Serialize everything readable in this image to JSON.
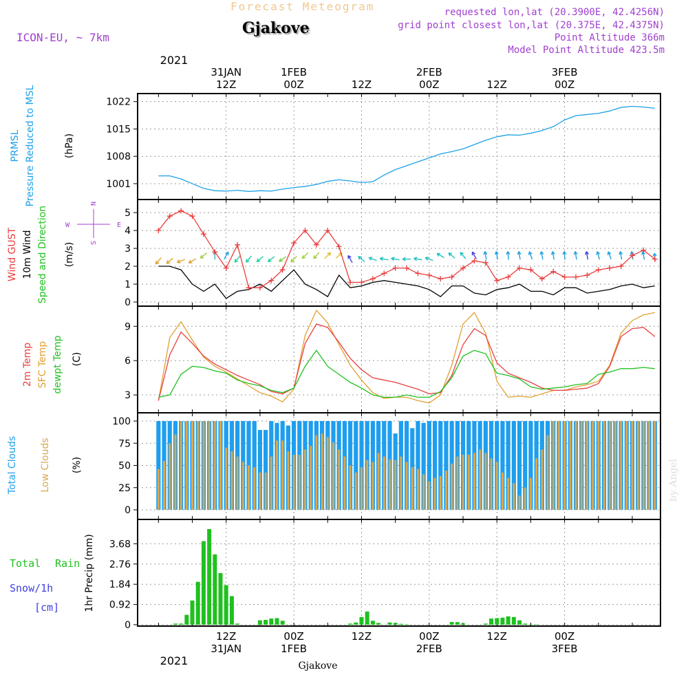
{
  "header": {
    "product": "Forecast Meteogram",
    "model": "ICON-EU, ~ 7km",
    "location": "Gjakove",
    "requested": "requested lon,lat (20.3900E, 42.4256N)",
    "grid_point": "grid point closest lon,lat (20.375E, 42.4375N)",
    "point_altitude": "Point Altitude 366m",
    "model_altitude": "Model Point Altitude 423.5m"
  },
  "watermark": "by Angel",
  "footer_location": "Gjakove",
  "time_axis": {
    "year": "2021",
    "top_ticks": [
      {
        "hour": 12,
        "date": "31JAN",
        "time": "12Z"
      },
      {
        "hour": 24,
        "date": "1FEB",
        "time": "00Z"
      },
      {
        "hour": 36,
        "date": "",
        "time": "12Z"
      },
      {
        "hour": 48,
        "date": "2FEB",
        "time": "00Z"
      },
      {
        "hour": 60,
        "date": "",
        "time": "12Z"
      },
      {
        "hour": 72,
        "date": "3FEB",
        "time": "00Z"
      }
    ],
    "bottom_ticks": [
      {
        "hour": 12,
        "time": "12Z",
        "date": "31JAN"
      },
      {
        "hour": 24,
        "time": "00Z",
        "date": "1FEB"
      },
      {
        "hour": 36,
        "time": "12Z",
        "date": ""
      },
      {
        "hour": 48,
        "time": "00Z",
        "date": "2FEB"
      },
      {
        "hour": 60,
        "time": "12Z",
        "date": ""
      },
      {
        "hour": 72,
        "time": "00Z",
        "date": "3FEB"
      }
    ]
  },
  "panel_labels": {
    "pressure": {
      "name": "PRMSL",
      "desc": "Pressure Reduced to MSL",
      "unit": "(hPa)"
    },
    "wind": {
      "gust": "Wind GUST",
      "wind10": "10m Wind",
      "dir": "Speed and Direction",
      "unit": "(m/s)",
      "compass_n": "N",
      "compass_s": "S",
      "compass_w": "W",
      "compass_e": "E"
    },
    "temp": {
      "t2m": "2m Temp",
      "sfc": "SFC Temp",
      "dewpt": "dewpt Temp",
      "unit": "(C)"
    },
    "clouds": {
      "total": "Total Clouds",
      "low": "Low Clouds",
      "unit": "(%)"
    },
    "precip": {
      "total": "Total",
      "rain": "Rain",
      "snow": "Snow/1h",
      "snow_unit": "[cm]",
      "axis": "1hr Precip (mm)"
    }
  },
  "colors": {
    "pressure": "#1ea0e8",
    "gust": "#e83c3c",
    "wind10": "#000000",
    "t2m": "#e84040",
    "sfc": "#e0a030",
    "dewpt": "#20c020",
    "total_clouds": "#1e9eee",
    "low_clouds": "#d8a850",
    "rain": "#20c020",
    "snow": "#4040e0",
    "header_purple": "#a040d0",
    "header_orange": "#f0c890"
  },
  "chart_data": [
    {
      "type": "line",
      "title": "PRMSL Pressure Reduced to MSL",
      "ylabel": "(hPa)",
      "ylim": [
        998,
        1023
      ],
      "yticks": [
        "1001",
        "1008",
        "1015",
        "1022"
      ],
      "x_hours": [
        0,
        2,
        4,
        6,
        8,
        10,
        12,
        14,
        16,
        18,
        20,
        22,
        24,
        26,
        28,
        30,
        32,
        34,
        36,
        38,
        40,
        42,
        44,
        46,
        48,
        50,
        52,
        54,
        56,
        58,
        60,
        62,
        64,
        66,
        68,
        70,
        72,
        74,
        76,
        78,
        80,
        82,
        84,
        86,
        88
      ],
      "series": [
        {
          "name": "PRMSL",
          "values": [
            1003,
            1003,
            1002.2,
            1001,
            999.8,
            999.2,
            999.1,
            999.3,
            999.0,
            999.2,
            999.1,
            999.6,
            1000.0,
            1000.3,
            1000.8,
            1001.6,
            1002.0,
            1001.7,
            1001.3,
            1001.5,
            1003.2,
            1004.6,
            1005.6,
            1006.6,
            1007.6,
            1008.6,
            1009.2,
            1009.9,
            1011.0,
            1012.1,
            1013.0,
            1013.5,
            1013.4,
            1013.9,
            1014.6,
            1015.6,
            1017.3,
            1018.4,
            1018.7,
            1019.0,
            1019.6,
            1020.5,
            1020.8,
            1020.6,
            1020.3
          ]
        }
      ]
    },
    {
      "type": "line",
      "title": "Wind GUST / 10m Wind",
      "ylabel": "(m/s)",
      "ylim": [
        0,
        5.5
      ],
      "yticks": [
        "0",
        "1",
        "2",
        "3",
        "4",
        "5"
      ],
      "x_hours": [
        0,
        2,
        4,
        6,
        8,
        10,
        12,
        14,
        16,
        18,
        20,
        22,
        24,
        26,
        28,
        30,
        32,
        34,
        36,
        38,
        40,
        42,
        44,
        46,
        48,
        50,
        52,
        54,
        56,
        58,
        60,
        62,
        64,
        66,
        68,
        70,
        72,
        74,
        76,
        78,
        80,
        82,
        84,
        86,
        88
      ],
      "series": [
        {
          "name": "Wind GUST",
          "values": [
            4.0,
            4.8,
            5.1,
            4.8,
            3.8,
            2.8,
            1.9,
            3.2,
            0.8,
            0.8,
            1.2,
            1.8,
            3.3,
            4.0,
            3.2,
            4.0,
            3.1,
            1.1,
            1.1,
            1.3,
            1.6,
            1.9,
            1.9,
            1.6,
            1.5,
            1.3,
            1.4,
            1.9,
            2.3,
            2.2,
            1.2,
            1.4,
            1.9,
            1.8,
            1.3,
            1.7,
            1.4,
            1.4,
            1.5,
            1.8,
            1.9,
            2.0,
            2.6,
            2.9,
            2.4
          ]
        },
        {
          "name": "10m Wind",
          "values": [
            2.0,
            2.0,
            1.8,
            1.0,
            0.6,
            1.0,
            0.2,
            0.6,
            0.7,
            1.0,
            0.6,
            1.2,
            1.8,
            1.0,
            0.7,
            0.3,
            1.5,
            0.8,
            0.9,
            1.1,
            1.2,
            1.1,
            1.0,
            0.9,
            0.7,
            0.3,
            0.9,
            0.9,
            0.5,
            0.4,
            0.7,
            0.8,
            1.0,
            0.6,
            0.6,
            0.4,
            0.8,
            0.8,
            0.5,
            0.6,
            0.7,
            0.9,
            1.0,
            0.8,
            0.9
          ]
        }
      ]
    },
    {
      "type": "line",
      "title": "2m Temp / SFC Temp / dewpt Temp",
      "ylabel": "(C)",
      "ylim": [
        1.8,
        10.4
      ],
      "yticks": [
        "3",
        "6",
        "9"
      ],
      "x_hours": [
        0,
        2,
        4,
        6,
        8,
        10,
        12,
        14,
        16,
        18,
        20,
        22,
        24,
        26,
        28,
        30,
        32,
        34,
        36,
        38,
        40,
        42,
        44,
        46,
        48,
        50,
        52,
        54,
        56,
        58,
        60,
        62,
        64,
        66,
        68,
        70,
        72,
        74,
        76,
        78,
        80,
        82,
        84,
        86,
        88
      ],
      "series": [
        {
          "name": "2m Temp",
          "values": [
            2.5,
            6.5,
            8.5,
            7.5,
            6.4,
            5.7,
            5.2,
            4.7,
            4.3,
            3.9,
            3.3,
            3.1,
            3.6,
            7.5,
            9.2,
            8.9,
            7.6,
            6.2,
            5.2,
            4.5,
            4.3,
            4.1,
            3.8,
            3.5,
            3.1,
            3.2,
            4.7,
            7.4,
            8.8,
            8.2,
            5.8,
            4.9,
            4.5,
            4.1,
            3.6,
            3.4,
            3.4,
            3.5,
            3.6,
            4.0,
            5.5,
            8.1,
            8.8,
            8.9,
            8.1
          ]
        },
        {
          "name": "SFC Temp",
          "values": [
            2.5,
            8.0,
            9.4,
            7.8,
            6.3,
            5.5,
            5.0,
            4.4,
            3.8,
            3.2,
            2.9,
            2.4,
            3.5,
            8.2,
            10.4,
            9.3,
            7.4,
            5.6,
            4.3,
            3.2,
            2.7,
            2.8,
            2.8,
            2.5,
            2.3,
            3.0,
            5.6,
            9.2,
            10.2,
            8.4,
            4.2,
            2.8,
            2.9,
            2.8,
            3.1,
            3.4,
            3.4,
            3.7,
            3.9,
            4.2,
            5.6,
            8.4,
            9.5,
            10.0,
            10.2
          ]
        },
        {
          "name": "dewpt Temp",
          "values": [
            2.8,
            3.0,
            4.8,
            5.5,
            5.4,
            5.1,
            4.9,
            4.3,
            4.0,
            3.8,
            3.4,
            3.2,
            3.6,
            5.5,
            6.9,
            5.5,
            4.8,
            4.1,
            3.6,
            3.0,
            2.8,
            2.8,
            3.0,
            2.8,
            2.8,
            3.3,
            4.5,
            6.4,
            6.9,
            6.6,
            4.9,
            4.7,
            4.4,
            3.7,
            3.5,
            3.6,
            3.7,
            3.9,
            4.0,
            4.8,
            5.0,
            5.3,
            5.3,
            5.4,
            5.3
          ]
        }
      ]
    },
    {
      "type": "bar",
      "title": "Total Clouds / Low Clouds",
      "ylabel": "(%)",
      "ylim": [
        0,
        100
      ],
      "yticks": [
        "0",
        "25",
        "50",
        "75",
        "100"
      ],
      "x_hours": [
        0,
        1,
        2,
        3,
        4,
        5,
        6,
        7,
        8,
        9,
        10,
        11,
        12,
        13,
        14,
        15,
        16,
        17,
        18,
        19,
        20,
        21,
        22,
        23,
        24,
        25,
        26,
        27,
        28,
        29,
        30,
        31,
        32,
        33,
        34,
        35,
        36,
        37,
        38,
        39,
        40,
        41,
        42,
        43,
        44,
        45,
        46,
        47,
        48,
        49,
        50,
        51,
        52,
        53,
        54,
        55,
        56,
        57,
        58,
        59,
        60,
        61,
        62,
        63,
        64,
        65,
        66,
        67,
        68,
        69,
        70,
        71,
        72,
        73,
        74,
        75,
        76,
        77,
        78,
        79,
        80,
        81,
        82,
        83,
        84,
        85,
        86,
        87,
        88
      ],
      "series": [
        {
          "name": "Total Clouds",
          "values": [
            100,
            100,
            100,
            100,
            100,
            100,
            100,
            100,
            100,
            100,
            100,
            100,
            100,
            100,
            100,
            100,
            100,
            100,
            90,
            90,
            100,
            98,
            100,
            95,
            100,
            100,
            100,
            100,
            100,
            100,
            100,
            100,
            100,
            100,
            100,
            100,
            100,
            100,
            100,
            100,
            100,
            100,
            86,
            100,
            100,
            92,
            100,
            98,
            100,
            100,
            100,
            100,
            100,
            100,
            100,
            100,
            100,
            100,
            100,
            100,
            100,
            100,
            100,
            100,
            100,
            100,
            100,
            100,
            100,
            100,
            100,
            100,
            100,
            100,
            100,
            100,
            100,
            100,
            100,
            100,
            100,
            100,
            100,
            100,
            100,
            100,
            100,
            100,
            100
          ]
        },
        {
          "name": "Low Clouds",
          "values": [
            46,
            55,
            75,
            85,
            100,
            100,
            100,
            100,
            100,
            100,
            100,
            100,
            70,
            66,
            60,
            54,
            50,
            48,
            42,
            42,
            60,
            78,
            78,
            66,
            62,
            62,
            68,
            72,
            84,
            86,
            82,
            76,
            68,
            60,
            50,
            42,
            48,
            56,
            54,
            64,
            60,
            57,
            56,
            60,
            54,
            48,
            46,
            40,
            32,
            36,
            38,
            44,
            52,
            60,
            62,
            62,
            64,
            68,
            64,
            58,
            54,
            42,
            36,
            30,
            16,
            25,
            36,
            58,
            68,
            84,
            100,
            100,
            100,
            100,
            100,
            100,
            100,
            100,
            100,
            100,
            100,
            100,
            100,
            100,
            100,
            100,
            100,
            100,
            100
          ]
        }
      ]
    },
    {
      "type": "bar",
      "title": "Total Rain / Snow 1hr Precip",
      "ylabel": "1hr Precip (mm)",
      "ylim": [
        0,
        4.6
      ],
      "yticks": [
        "0",
        "0.92",
        "1.84",
        "2.76",
        "3.68"
      ],
      "x_hours": [
        3,
        4,
        5,
        6,
        7,
        8,
        9,
        10,
        11,
        12,
        13,
        14,
        15,
        16,
        17,
        18,
        19,
        20,
        21,
        22,
        23,
        34,
        35,
        36,
        37,
        38,
        39,
        40,
        41,
        42,
        43,
        44,
        52,
        53,
        54,
        58,
        59,
        60,
        61,
        62,
        63,
        64,
        65,
        66,
        67
      ],
      "series": [
        {
          "name": "Total Rain",
          "values": [
            0.05,
            0.05,
            0.45,
            1.1,
            1.95,
            3.8,
            4.35,
            3.2,
            2.35,
            1.8,
            1.3,
            0.05,
            0.0,
            0.0,
            0.0,
            0.2,
            0.22,
            0.28,
            0.3,
            0.18,
            0.0,
            0.05,
            0.1,
            0.35,
            0.6,
            0.18,
            0.08,
            0.0,
            0.1,
            0.08,
            0.04,
            0.02,
            0.12,
            0.12,
            0.06,
            0.05,
            0.28,
            0.3,
            0.32,
            0.38,
            0.35,
            0.2,
            0.05,
            0.02,
            0.02
          ]
        }
      ]
    }
  ],
  "wind_arrows": {
    "x_hours": [
      0,
      2,
      4,
      6,
      8,
      10,
      12,
      14,
      16,
      18,
      20,
      22,
      24,
      26,
      28,
      30,
      32,
      34,
      36,
      38,
      40,
      42,
      44,
      46,
      48,
      50,
      52,
      54,
      56,
      58,
      60,
      62,
      64,
      66,
      68,
      70,
      72,
      74,
      76,
      78,
      80,
      82,
      84,
      86,
      88
    ],
    "row_m_s": [
      2.3,
      2.3,
      2.3,
      2.3,
      2.6,
      2.6,
      2.6,
      2.4,
      2.4,
      2.4,
      2.4,
      2.4,
      2.4,
      2.6,
      2.6,
      2.6,
      2.6,
      2.4,
      2.4,
      2.4,
      2.4,
      2.4,
      2.4,
      2.4,
      2.4,
      2.6,
      2.6,
      2.6,
      2.6,
      2.6,
      2.6,
      2.6,
      2.6,
      2.6,
      2.6,
      2.6,
      2.6,
      2.6,
      2.6,
      2.6,
      2.6,
      2.6,
      2.6,
      2.6,
      2.5
    ],
    "angle_deg": [
      230,
      220,
      200,
      210,
      220,
      90,
      60,
      230,
      230,
      220,
      220,
      215,
      225,
      225,
      230,
      45,
      40,
      120,
      140,
      160,
      170,
      170,
      180,
      170,
      160,
      150,
      140,
      130,
      120,
      100,
      100,
      95,
      100,
      110,
      100,
      100,
      95,
      100,
      100,
      105,
      110,
      100,
      100,
      100,
      95
    ],
    "color": [
      "#e0a030",
      "#e0a030",
      "#e0a030",
      "#e0a030",
      "#a0d040",
      "#20c0c0",
      "#20a0e0",
      "#20d0a0",
      "#20d0a0",
      "#20d0a0",
      "#20d0a0",
      "#80d040",
      "#a0d040",
      "#a0d040",
      "#a0d040",
      "#e0c030",
      "#e0c030",
      "#4040e0",
      "#20c0c0",
      "#20c0c0",
      "#20c0c0",
      "#20c0c0",
      "#20c0c0",
      "#20c0c0",
      "#20c0c0",
      "#20c0c0",
      "#20c0c0",
      "#20c0c0",
      "#4040e0",
      "#20a0e0",
      "#20a0e0",
      "#20a0e0",
      "#20a0e0",
      "#20a0e0",
      "#20a0e0",
      "#20a0e0",
      "#20a0e0",
      "#20a0e0",
      "#4040e0",
      "#20a0e0",
      "#20a0e0",
      "#20a0e0",
      "#20a0e0",
      "#20a0e0",
      "#20a0e0"
    ]
  }
}
